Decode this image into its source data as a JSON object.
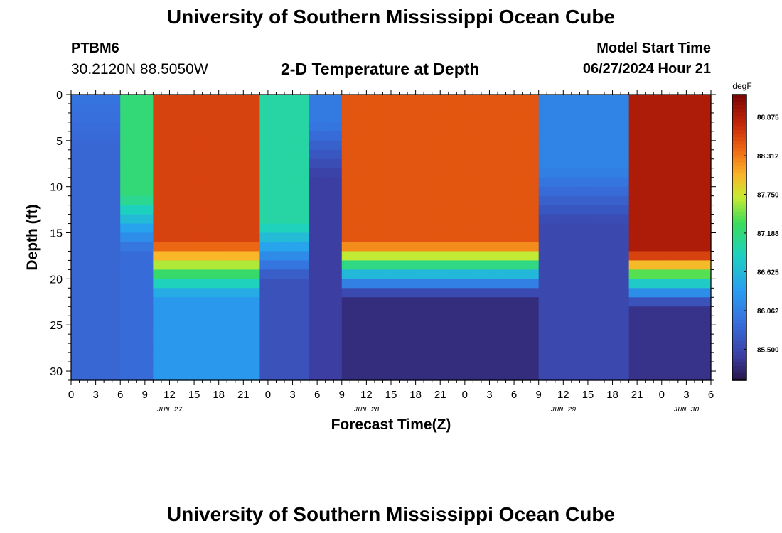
{
  "page": {
    "title": "University of Southern Mississippi Ocean Cube",
    "footer_title": "University of Southern Mississippi Ocean Cube",
    "station_id": "PTBM6",
    "coordinates": "30.2120N  88.5050W",
    "plot_title": "2-D Temperature at Depth",
    "model_start_label": "Model Start Time",
    "model_start_time": "06/27/2024 Hour 21"
  },
  "chart_data": {
    "type": "heatmap",
    "title": "2-D Temperature at Depth",
    "xlabel": "Forecast Time(Z)",
    "ylabel": "Depth (ft)",
    "units": "degF",
    "xlim": [
      0,
      78
    ],
    "ylim": [
      31,
      0
    ],
    "x_ticks": [
      {
        "h": 0,
        "label": "0"
      },
      {
        "h": 3,
        "label": "3"
      },
      {
        "h": 6,
        "label": "6"
      },
      {
        "h": 9,
        "label": "9"
      },
      {
        "h": 12,
        "label": "12"
      },
      {
        "h": 15,
        "label": "15"
      },
      {
        "h": 18,
        "label": "18"
      },
      {
        "h": 21,
        "label": "21"
      },
      {
        "h": 24,
        "label": "0"
      },
      {
        "h": 27,
        "label": "3"
      },
      {
        "h": 30,
        "label": "6"
      },
      {
        "h": 33,
        "label": "9"
      },
      {
        "h": 36,
        "label": "12"
      },
      {
        "h": 39,
        "label": "15"
      },
      {
        "h": 42,
        "label": "18"
      },
      {
        "h": 45,
        "label": "21"
      },
      {
        "h": 48,
        "label": "0"
      },
      {
        "h": 51,
        "label": "3"
      },
      {
        "h": 54,
        "label": "6"
      },
      {
        "h": 57,
        "label": "9"
      },
      {
        "h": 60,
        "label": "12"
      },
      {
        "h": 63,
        "label": "15"
      },
      {
        "h": 66,
        "label": "18"
      },
      {
        "h": 69,
        "label": "21"
      },
      {
        "h": 72,
        "label": "0"
      },
      {
        "h": 75,
        "label": "3"
      },
      {
        "h": 78,
        "label": "6"
      }
    ],
    "y_ticks": [
      0,
      5,
      10,
      15,
      20,
      25,
      30
    ],
    "date_labels": [
      {
        "h": 12,
        "label": "JUN 27"
      },
      {
        "h": 36,
        "label": "JUN 28"
      },
      {
        "h": 60,
        "label": "JUN 29"
      },
      {
        "h": 75,
        "label": "JUN 30"
      }
    ],
    "colorbar": {
      "label": "degF",
      "min": 85.05,
      "max": 89.2,
      "ticks": [
        85.5,
        86.062,
        86.625,
        87.188,
        87.75,
        88.312,
        88.875
      ],
      "tick_labels": [
        "85.500",
        "86.062",
        "86.625",
        "87.188",
        "87.750",
        "88.312",
        "88.875"
      ]
    },
    "profile_segments": [
      {
        "h": [
          0,
          5
        ],
        "thermocline_ft": 0,
        "surface_degF": 85.95,
        "bottom_degF": 85.8
      },
      {
        "h": [
          6,
          9
        ],
        "thermocline_ft": 11,
        "surface_degF": 87.2,
        "bottom_degF": 85.85
      },
      {
        "h": [
          10,
          22
        ],
        "thermocline_ft": 16,
        "surface_degF": 88.6,
        "bottom_degF": 86.3
      },
      {
        "h": [
          23,
          28
        ],
        "thermocline_ft": 14,
        "surface_degF": 87.0,
        "bottom_degF": 85.6
      },
      {
        "h": [
          29,
          32
        ],
        "thermocline_ft": 3,
        "surface_degF": 86.0,
        "bottom_degF": 85.4
      },
      {
        "h": [
          33,
          56
        ],
        "thermocline_ft": 16,
        "surface_degF": 88.5,
        "bottom_degF": 85.25
      },
      {
        "h": [
          57,
          67
        ],
        "thermocline_ft": 8,
        "surface_degF": 86.1,
        "bottom_degF": 85.5
      },
      {
        "h": [
          68,
          78
        ],
        "thermocline_ft": 17,
        "surface_degF": 88.9,
        "bottom_degF": 85.3
      }
    ]
  }
}
